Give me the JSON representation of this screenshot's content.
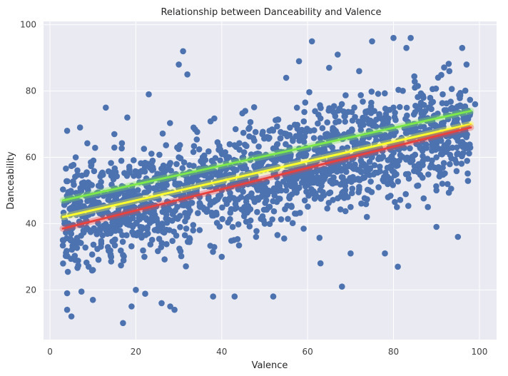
{
  "chart_data": {
    "type": "scatter",
    "title": "Relationship between Danceability and Valence",
    "xlabel": "Valence",
    "ylabel": "Danceability",
    "xlim": [
      -1.5,
      104
    ],
    "ylim": [
      5,
      101
    ],
    "xticks": [
      0,
      20,
      40,
      60,
      80,
      100
    ],
    "yticks": [
      20,
      40,
      60,
      80,
      100
    ],
    "grid": true,
    "background": "#eaeaf2",
    "grid_color": "#ffffff",
    "point_color": "#4c72b0",
    "approx_point_count": 1900,
    "points_sample": [
      [
        3,
        35
      ],
      [
        4,
        68
      ],
      [
        4,
        19
      ],
      [
        4,
        14
      ],
      [
        5,
        12
      ],
      [
        6,
        60
      ],
      [
        7,
        69
      ],
      [
        9,
        27
      ],
      [
        10,
        26
      ],
      [
        10,
        17
      ],
      [
        13,
        75
      ],
      [
        15,
        67
      ],
      [
        17,
        10
      ],
      [
        18,
        72
      ],
      [
        19,
        15
      ],
      [
        20,
        20
      ],
      [
        23,
        79
      ],
      [
        26,
        16
      ],
      [
        28,
        15
      ],
      [
        29,
        14
      ],
      [
        30,
        88
      ],
      [
        31,
        92
      ],
      [
        32,
        85
      ],
      [
        38,
        18
      ],
      [
        40,
        30
      ],
      [
        43,
        18
      ],
      [
        48,
        36
      ],
      [
        52,
        18
      ],
      [
        55,
        84
      ],
      [
        58,
        89
      ],
      [
        61,
        95
      ],
      [
        63,
        28
      ],
      [
        65,
        87
      ],
      [
        67,
        91
      ],
      [
        68,
        21
      ],
      [
        70,
        31
      ],
      [
        72,
        86
      ],
      [
        75,
        95
      ],
      [
        78,
        31
      ],
      [
        80,
        96
      ],
      [
        81,
        27
      ],
      [
        83,
        93
      ],
      [
        84,
        96
      ],
      [
        88,
        45
      ],
      [
        90,
        39
      ],
      [
        93,
        86
      ],
      [
        95,
        36
      ],
      [
        96,
        93
      ],
      [
        97,
        88
      ],
      [
        99,
        76
      ],
      [
        20,
        40
      ],
      [
        25,
        55
      ],
      [
        35,
        45
      ],
      [
        45,
        60
      ],
      [
        55,
        50
      ],
      [
        65,
        65
      ],
      [
        75,
        60
      ],
      [
        85,
        70
      ],
      [
        90,
        60
      ],
      [
        95,
        65
      ],
      [
        10,
        45
      ],
      [
        15,
        35
      ],
      [
        30,
        60
      ],
      [
        40,
        50
      ],
      [
        50,
        40
      ],
      [
        60,
        55
      ],
      [
        70,
        45
      ],
      [
        80,
        75
      ],
      [
        12,
        55
      ],
      [
        22,
        30
      ]
    ],
    "series": [
      {
        "color": "#7ce84b",
        "x": [
          3,
          98
        ],
        "y": [
          47,
          74
        ]
      },
      {
        "color": "#ffff2e",
        "x": [
          3,
          98
        ],
        "y": [
          42,
          70
        ]
      },
      {
        "color": "#e8423f",
        "x": [
          3,
          98
        ],
        "y": [
          38.5,
          69
        ]
      }
    ]
  }
}
